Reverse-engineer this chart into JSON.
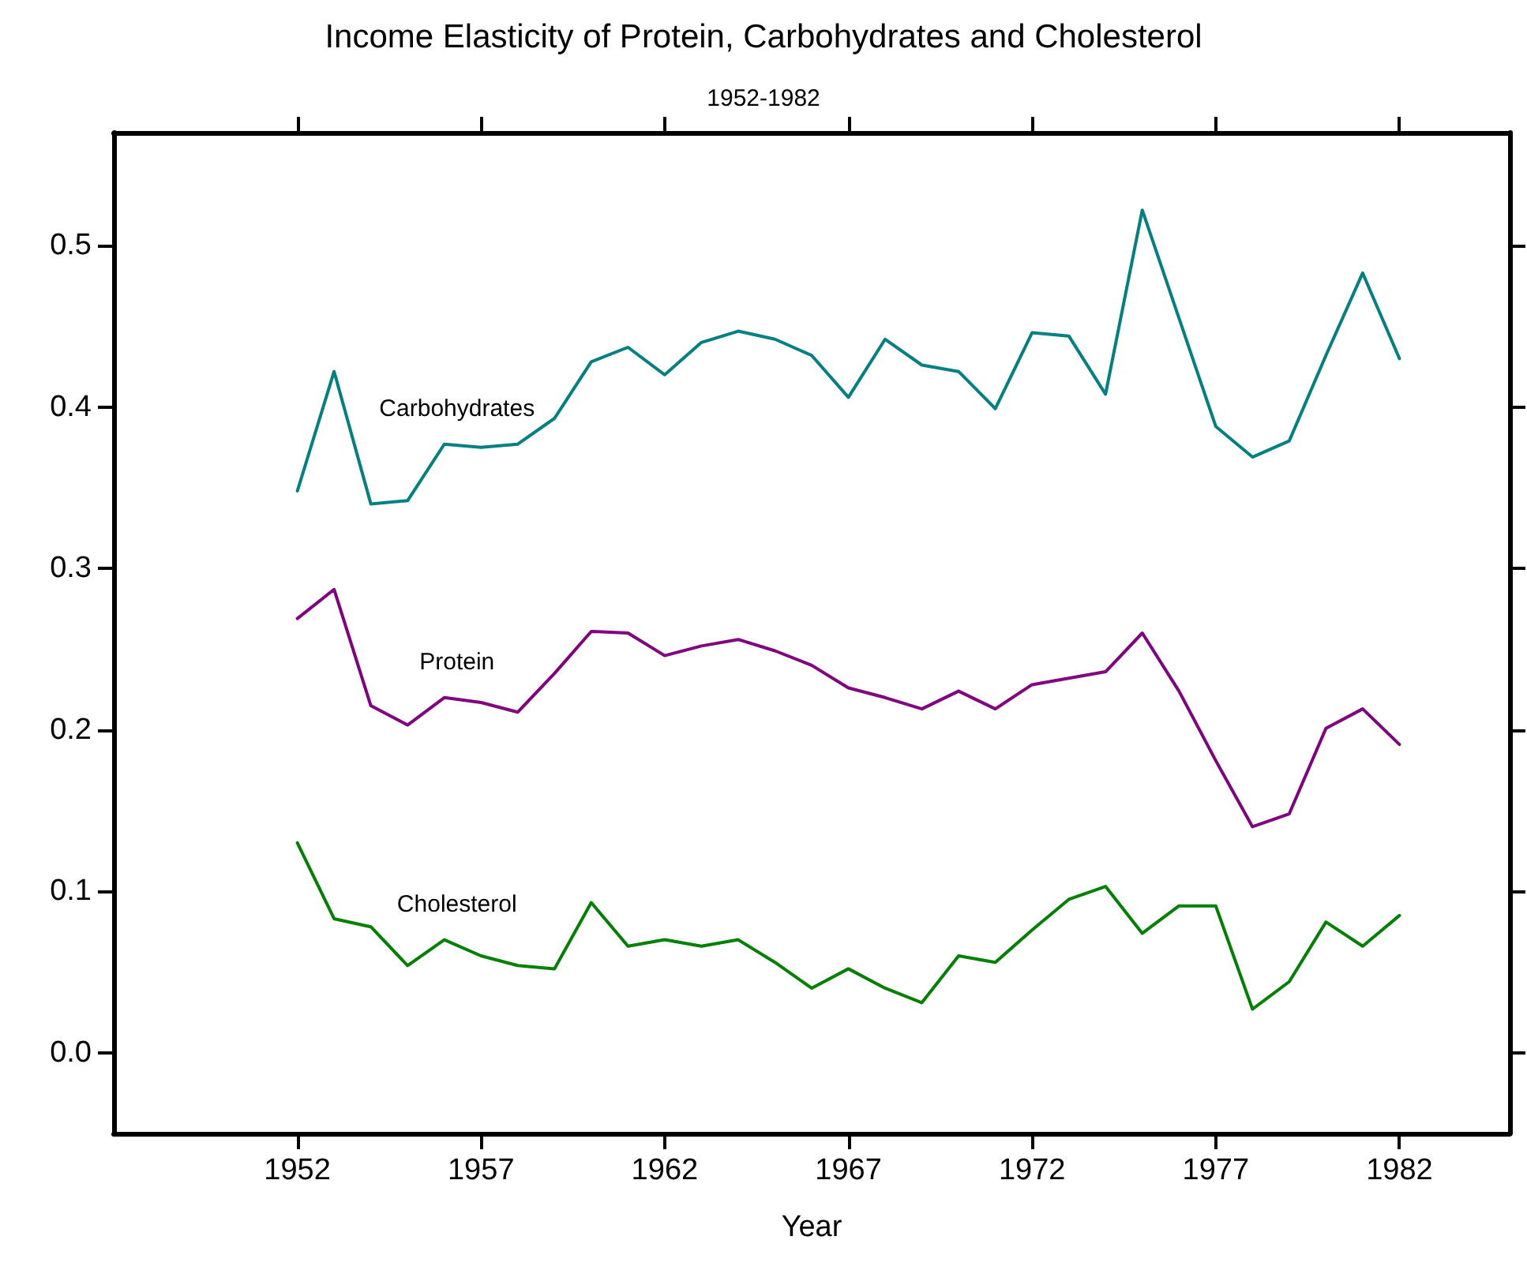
{
  "chart_data": {
    "type": "line",
    "title": "Income Elasticity of Protein, Carbohydrates and Cholesterol",
    "subtitle": "1952-1982",
    "xlabel": "Year",
    "x": [
      1952,
      1953,
      1954,
      1955,
      1956,
      1957,
      1958,
      1959,
      1960,
      1961,
      1962,
      1963,
      1964,
      1965,
      1966,
      1967,
      1968,
      1969,
      1970,
      1971,
      1972,
      1973,
      1974,
      1975,
      1976,
      1977,
      1978,
      1979,
      1980,
      1981,
      1982
    ],
    "series": [
      {
        "name": "Carbohydrates",
        "color": "#008080",
        "values": [
          0.348,
          0.422,
          0.34,
          0.342,
          0.377,
          0.375,
          0.377,
          0.393,
          0.428,
          0.437,
          0.42,
          0.44,
          0.447,
          0.442,
          0.432,
          0.406,
          0.442,
          0.426,
          0.422,
          0.399,
          0.446,
          0.444,
          0.408,
          0.522,
          0.455,
          0.388,
          0.369,
          0.379,
          0.432,
          0.483,
          0.43
        ]
      },
      {
        "name": "Protein",
        "color": "#800080",
        "values": [
          0.269,
          0.287,
          0.215,
          0.203,
          0.22,
          0.217,
          0.211,
          0.235,
          0.261,
          0.26,
          0.246,
          0.252,
          0.256,
          0.249,
          0.24,
          0.226,
          0.22,
          0.213,
          0.224,
          0.213,
          0.228,
          0.232,
          0.236,
          0.26,
          0.224,
          0.181,
          0.14,
          0.148,
          0.201,
          0.213,
          0.191
        ]
      },
      {
        "name": "Cholesterol",
        "color": "#008000",
        "values": [
          0.13,
          0.083,
          0.078,
          0.054,
          0.07,
          0.06,
          0.054,
          0.052,
          0.093,
          0.066,
          0.07,
          0.066,
          0.07,
          0.056,
          0.04,
          0.052,
          0.04,
          0.031,
          0.06,
          0.056,
          0.076,
          0.095,
          0.103,
          0.074,
          0.091,
          0.091,
          0.027,
          0.044,
          0.081,
          0.066,
          0.085
        ]
      }
    ],
    "xlim": [
      1947,
      1985
    ],
    "xticks": [
      1952,
      1957,
      1962,
      1967,
      1972,
      1977,
      1982
    ],
    "ylim": [
      -0.05,
      0.57
    ],
    "yticks": [
      {
        "value": 0,
        "label": "0.0"
      },
      {
        "value": 0.1,
        "label": "0.1"
      },
      {
        "value": 0.2,
        "label": "0.2"
      },
      {
        "value": 0.3,
        "label": "0.3"
      },
      {
        "value": 0.4,
        "label": "0.4"
      },
      {
        "value": 0.5,
        "label": "0.5"
      }
    ],
    "grid": false,
    "legend": false,
    "marker": "none",
    "line_style": "solid"
  }
}
